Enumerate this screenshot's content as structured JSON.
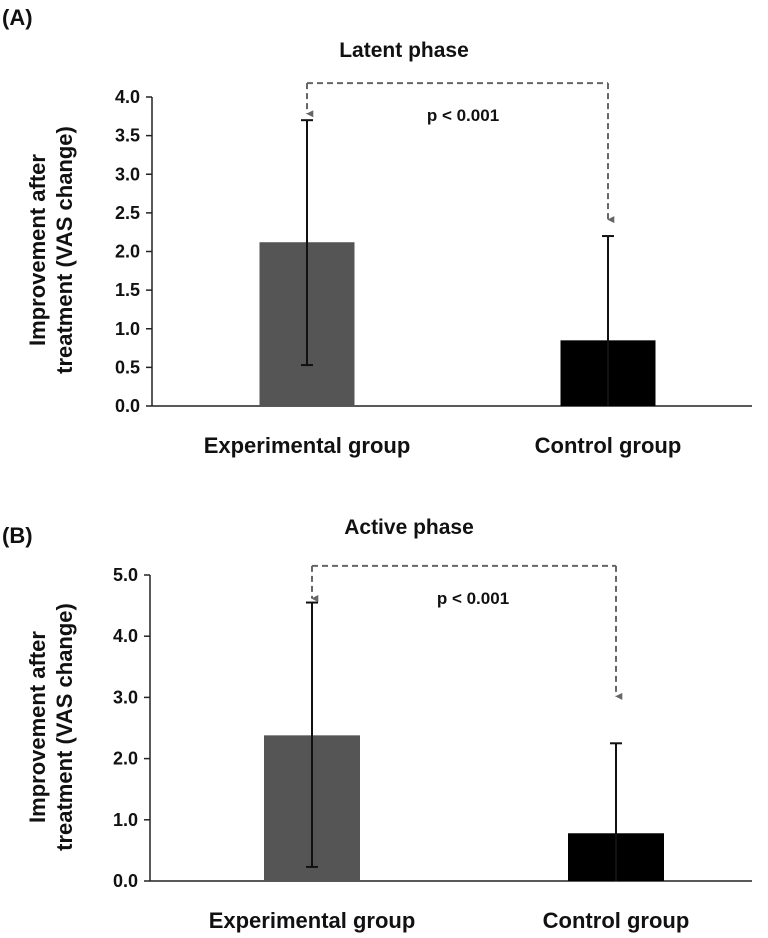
{
  "colors": {
    "background": "#ffffff",
    "axis": "#222222",
    "connector": "#666666"
  },
  "chart_data": [
    {
      "type": "bar",
      "panel_label": "(A)",
      "title": "Latent phase",
      "categories": [
        "Experimental group",
        "Control group"
      ],
      "values": [
        2.12,
        0.85
      ],
      "error_upper": [
        3.7,
        2.2
      ],
      "error_lower": [
        0.53,
        0.0
      ],
      "bar_colors": [
        "#555555",
        "#000000"
      ],
      "ylabel_line1": "Improvement after",
      "ylabel_line2": "treatment (VAS change)",
      "xlabel": "",
      "ylim": [
        0,
        4
      ],
      "y_ticks": [
        0,
        0.5,
        1,
        1.5,
        2,
        2.5,
        3,
        3.5,
        4
      ],
      "y_tick_labels": [
        "0.0",
        "0.5",
        "1.0",
        "1.5",
        "2.0",
        "2.5",
        "3.0",
        "3.5",
        "4.0"
      ],
      "grid": false,
      "annotation": "p < 0.001",
      "comparison": {
        "from": "Experimental group",
        "to": "Control group",
        "bracket_y": 4.18,
        "arrow_tips": [
          3.77,
          2.4
        ]
      }
    },
    {
      "type": "bar",
      "panel_label": "(B)",
      "title": "Active phase",
      "categories": [
        "Experimental group",
        "Control group"
      ],
      "values": [
        2.38,
        0.78
      ],
      "error_upper": [
        4.55,
        2.25
      ],
      "error_lower": [
        0.23,
        0.0
      ],
      "bar_colors": [
        "#555555",
        "#000000"
      ],
      "ylabel_line1": "Improvement after",
      "ylabel_line2": "treatment (VAS change)",
      "xlabel": "",
      "ylim": [
        0,
        5
      ],
      "y_ticks": [
        0,
        1,
        2,
        3,
        4,
        5
      ],
      "y_tick_labels": [
        "0.0",
        "1.0",
        "2.0",
        "3.0",
        "4.0",
        "5.0"
      ],
      "grid": false,
      "annotation": "p < 0.001",
      "comparison": {
        "from": "Experimental group",
        "to": "Control group",
        "bracket_y": 5.15,
        "arrow_tips": [
          4.6,
          3.0
        ]
      }
    }
  ]
}
